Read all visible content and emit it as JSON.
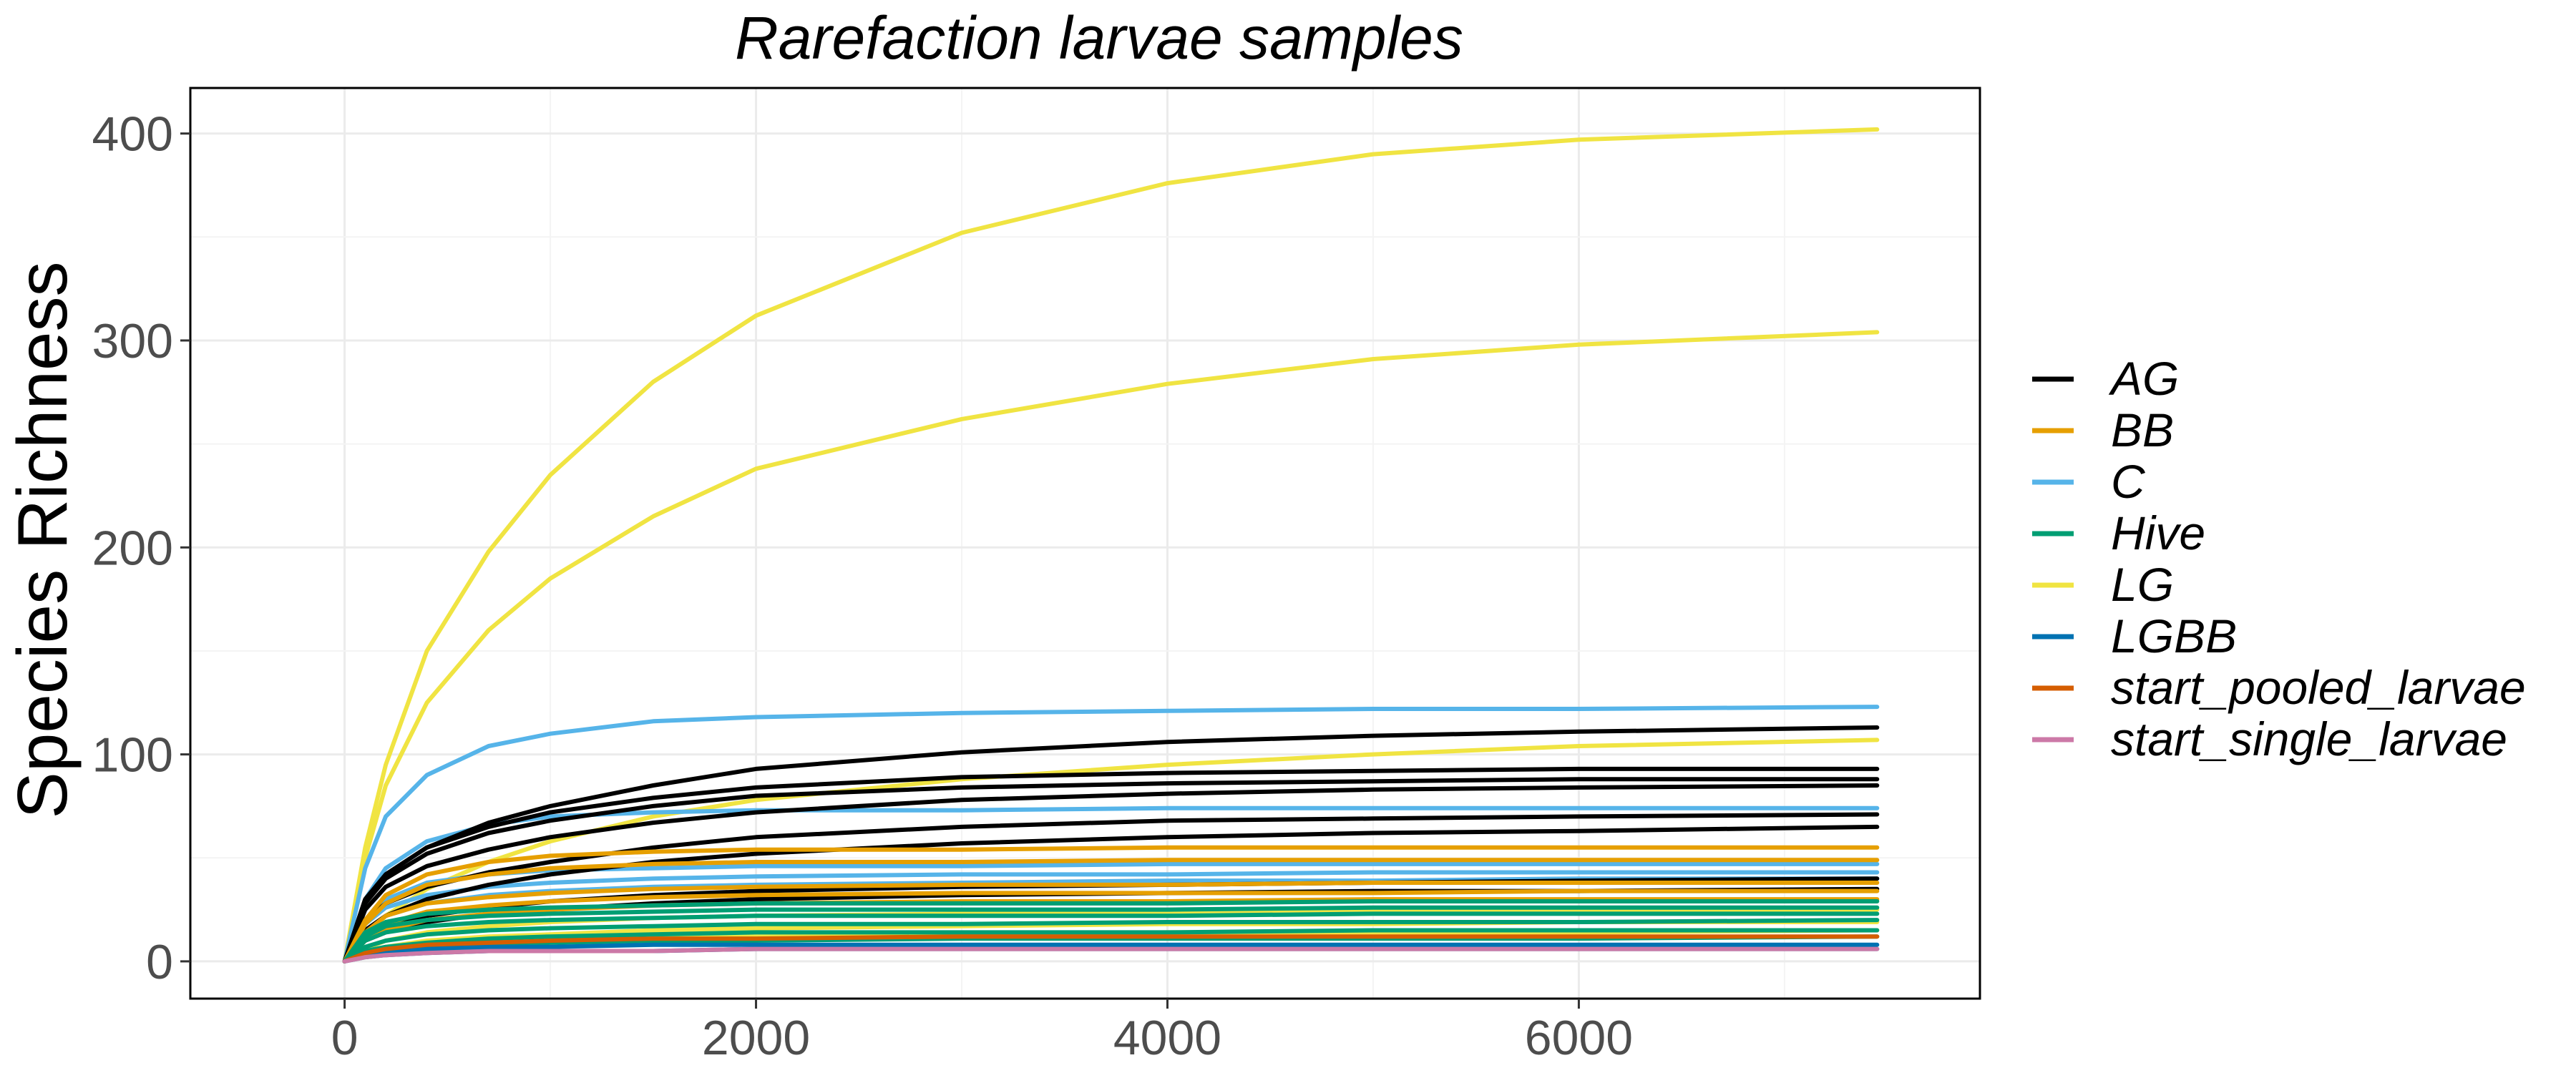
{
  "chart_data": {
    "type": "line",
    "title": "Rarefaction larvae samples",
    "xlabel": "",
    "ylabel": "Species Richness",
    "xlim": [
      -750,
      7950
    ],
    "ylim": [
      -18,
      422
    ],
    "x_ticks": [
      0,
      2000,
      4000,
      6000
    ],
    "y_ticks": [
      0,
      100,
      200,
      300,
      400
    ],
    "x_tick_labels": [
      "0",
      "2000",
      "4000",
      "6000"
    ],
    "y_tick_labels": [
      "0",
      "100",
      "200",
      "300",
      "400"
    ],
    "grid": true,
    "legend_position": "right",
    "legend": [
      {
        "name": "AG",
        "color": "#000000"
      },
      {
        "name": "BB",
        "color": "#E69F00"
      },
      {
        "name": "C",
        "color": "#56B4E9"
      },
      {
        "name": "Hive",
        "color": "#009E73"
      },
      {
        "name": "LG",
        "color": "#F0E442"
      },
      {
        "name": "LGBB",
        "color": "#0072B2"
      },
      {
        "name": "start_pooled_larvae",
        "color": "#D55E00"
      },
      {
        "name": "start_single_larvae",
        "color": "#CC79A7"
      }
    ],
    "x": [
      0,
      100,
      200,
      400,
      700,
      1000,
      1500,
      2000,
      3000,
      4000,
      5000,
      6000,
      7450
    ],
    "curves": [
      {
        "group": "LG",
        "values": [
          0,
          55,
          95,
          150,
          198,
          235,
          280,
          312,
          352,
          376,
          390,
          397,
          402
        ]
      },
      {
        "group": "LG",
        "values": [
          0,
          50,
          85,
          125,
          160,
          185,
          215,
          238,
          262,
          279,
          291,
          298,
          304
        ]
      },
      {
        "group": "LG",
        "values": [
          0,
          12,
          22,
          35,
          48,
          58,
          70,
          78,
          88,
          95,
          100,
          104,
          107
        ]
      },
      {
        "group": "LG",
        "values": [
          0,
          6,
          10,
          14,
          17,
          19,
          21,
          22,
          23,
          24,
          25,
          25,
          25
        ]
      },
      {
        "group": "LG",
        "values": [
          0,
          4,
          7,
          10,
          12,
          13,
          15,
          16,
          17,
          18,
          18,
          19,
          19
        ]
      },
      {
        "group": "LG",
        "values": [
          0,
          3,
          5,
          7,
          9,
          10,
          11,
          12,
          13,
          14,
          14,
          14,
          15
        ]
      },
      {
        "group": "C",
        "values": [
          0,
          45,
          70,
          90,
          104,
          110,
          116,
          118,
          120,
          121,
          122,
          122,
          123
        ]
      },
      {
        "group": "C",
        "values": [
          0,
          30,
          45,
          58,
          66,
          70,
          72,
          73,
          73,
          74,
          74,
          74,
          74
        ]
      },
      {
        "group": "C",
        "values": [
          0,
          20,
          30,
          38,
          42,
          44,
          45,
          46,
          46,
          47,
          47,
          47,
          47
        ]
      },
      {
        "group": "C",
        "values": [
          0,
          18,
          26,
          32,
          36,
          38,
          40,
          41,
          42,
          42,
          43,
          43,
          43
        ]
      },
      {
        "group": "C",
        "values": [
          0,
          15,
          22,
          28,
          32,
          34,
          36,
          37,
          38,
          39,
          39,
          40,
          40
        ]
      },
      {
        "group": "AG",
        "values": [
          0,
          30,
          42,
          55,
          67,
          75,
          85,
          93,
          101,
          106,
          109,
          111,
          113
        ]
      },
      {
        "group": "AG",
        "values": [
          0,
          30,
          42,
          55,
          65,
          72,
          79,
          84,
          89,
          91,
          92,
          93,
          93
        ]
      },
      {
        "group": "AG",
        "values": [
          0,
          28,
          40,
          52,
          62,
          68,
          75,
          80,
          84,
          86,
          87,
          88,
          88
        ]
      },
      {
        "group": "AG",
        "values": [
          0,
          25,
          36,
          46,
          54,
          60,
          67,
          72,
          78,
          81,
          83,
          84,
          85
        ]
      },
      {
        "group": "AG",
        "values": [
          0,
          20,
          28,
          36,
          43,
          48,
          55,
          60,
          65,
          68,
          69,
          70,
          71
        ]
      },
      {
        "group": "AG",
        "values": [
          0,
          15,
          22,
          30,
          37,
          42,
          48,
          52,
          57,
          60,
          62,
          63,
          65
        ]
      },
      {
        "group": "AG",
        "values": [
          0,
          12,
          17,
          22,
          26,
          29,
          32,
          34,
          36,
          37,
          38,
          39,
          40
        ]
      },
      {
        "group": "AG",
        "values": [
          0,
          10,
          14,
          19,
          23,
          25,
          28,
          30,
          32,
          33,
          34,
          34,
          35
        ]
      },
      {
        "group": "BB",
        "values": [
          0,
          20,
          32,
          42,
          48,
          51,
          53,
          54,
          54,
          55,
          55,
          55,
          55
        ]
      },
      {
        "group": "BB",
        "values": [
          0,
          18,
          28,
          37,
          42,
          45,
          47,
          48,
          48,
          49,
          49,
          49,
          49
        ]
      },
      {
        "group": "BB",
        "values": [
          0,
          14,
          22,
          28,
          31,
          33,
          35,
          36,
          37,
          37,
          38,
          38,
          38
        ]
      },
      {
        "group": "BB",
        "values": [
          0,
          12,
          18,
          24,
          27,
          29,
          31,
          32,
          33,
          33,
          33,
          34,
          34
        ]
      },
      {
        "group": "BB",
        "values": [
          0,
          10,
          15,
          20,
          23,
          25,
          27,
          28,
          29,
          29,
          30,
          30,
          30
        ]
      },
      {
        "group": "Hive",
        "values": [
          0,
          14,
          19,
          23,
          25,
          26,
          27,
          28,
          28,
          28,
          29,
          29,
          29
        ]
      },
      {
        "group": "Hive",
        "values": [
          0,
          12,
          17,
          20,
          22,
          23,
          24,
          25,
          25,
          25,
          26,
          26,
          26
        ]
      },
      {
        "group": "Hive",
        "values": [
          0,
          10,
          14,
          17,
          19,
          20,
          21,
          22,
          22,
          22,
          23,
          23,
          23
        ]
      },
      {
        "group": "Hive",
        "values": [
          0,
          7,
          10,
          13,
          15,
          16,
          17,
          18,
          18,
          19,
          19,
          19,
          20
        ]
      },
      {
        "group": "Hive",
        "values": [
          0,
          5,
          7,
          9,
          11,
          12,
          13,
          14,
          14,
          14,
          15,
          15,
          15
        ]
      },
      {
        "group": "Hive",
        "values": [
          0,
          4,
          5,
          7,
          8,
          9,
          10,
          10,
          11,
          11,
          11,
          11,
          12
        ]
      },
      {
        "group": "LGBB",
        "values": [
          0,
          3,
          5,
          6,
          7,
          7,
          8,
          8,
          8,
          8,
          8,
          8,
          8
        ]
      },
      {
        "group": "LGBB",
        "values": [
          0,
          2,
          3,
          4,
          5,
          5,
          5,
          6,
          6,
          6,
          6,
          6,
          6
        ]
      },
      {
        "group": "start_pooled_larvae",
        "values": [
          0,
          4,
          6,
          8,
          9,
          10,
          11,
          11,
          12,
          12,
          12,
          12,
          12
        ]
      },
      {
        "group": "start_single_larvae",
        "values": [
          0,
          2,
          3,
          4,
          5,
          5,
          5,
          6,
          6,
          6,
          6,
          6,
          6
        ]
      }
    ]
  }
}
